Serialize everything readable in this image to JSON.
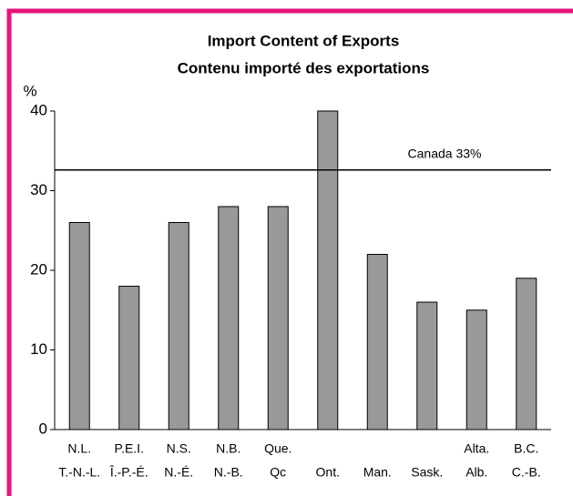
{
  "chart_data": {
    "type": "bar",
    "title": "Import Content of Exports",
    "subtitle": "Contenu importé des exportations",
    "y_label": "%",
    "categories": [
      [
        "N.L.",
        "T.-N.-L."
      ],
      [
        "P.E.I.",
        "Î.-P.-É."
      ],
      [
        "N.S.",
        "N.-É."
      ],
      [
        "N.B.",
        "N.-B."
      ],
      [
        "Que.",
        "Qc"
      ],
      [
        "Ont."
      ],
      [
        "Man."
      ],
      [
        "Sask."
      ],
      [
        "Alta.",
        "Alb."
      ],
      [
        "B.C.",
        "C.-B."
      ]
    ],
    "values": [
      26,
      18,
      26,
      28,
      28,
      40,
      22,
      16,
      15,
      19
    ],
    "color": "#999999",
    "ylim": [
      0,
      40
    ],
    "yticks": [
      0,
      10,
      20,
      30,
      40
    ],
    "reference_line": {
      "value": 32.6,
      "label": "Canada 33%"
    }
  }
}
